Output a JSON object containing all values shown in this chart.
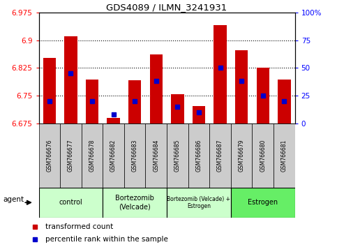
{
  "title": "GDS4089 / ILMN_3241931",
  "samples": [
    "GSM766676",
    "GSM766677",
    "GSM766678",
    "GSM766682",
    "GSM766683",
    "GSM766684",
    "GSM766685",
    "GSM766686",
    "GSM766687",
    "GSM766679",
    "GSM766680",
    "GSM766681"
  ],
  "bar_values": [
    6.852,
    6.91,
    6.793,
    6.69,
    6.792,
    6.862,
    6.755,
    6.722,
    6.94,
    6.872,
    6.825,
    6.793
  ],
  "percentile_values": [
    20,
    45,
    20,
    8,
    20,
    38,
    15,
    10,
    50,
    38,
    25,
    20
  ],
  "ymin": 6.675,
  "ymax": 6.975,
  "yticks": [
    6.675,
    6.75,
    6.825,
    6.9,
    6.975
  ],
  "percentile_ticks": [
    0,
    25,
    50,
    75,
    100
  ],
  "bar_color": "#cc0000",
  "percentile_color": "#0000cc",
  "bar_width": 0.6,
  "group_info": [
    {
      "start": 0,
      "end": 2,
      "label": "control",
      "color": "#ccffcc"
    },
    {
      "start": 3,
      "end": 5,
      "label": "Bortezomib\n(Velcade)",
      "color": "#ccffcc"
    },
    {
      "start": 6,
      "end": 8,
      "label": "Bortezomib (Velcade) +\nEstrogen",
      "color": "#ccffcc"
    },
    {
      "start": 9,
      "end": 11,
      "label": "Estrogen",
      "color": "#66ee66"
    }
  ],
  "legend_labels": [
    "transformed count",
    "percentile rank within the sample"
  ],
  "agent_label": "agent",
  "tick_bg_color": "#cccccc"
}
